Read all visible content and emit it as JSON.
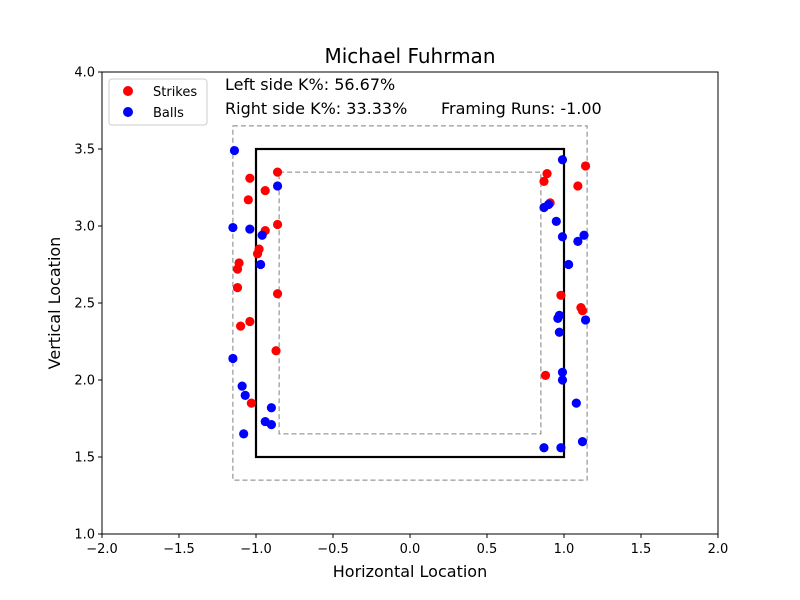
{
  "chart_data": {
    "type": "scatter",
    "title": "Michael Fuhrman",
    "xlabel": "Horizontal Location",
    "ylabel": "Vertical Location",
    "xlim": [
      -2.0,
      2.0
    ],
    "ylim": [
      1.0,
      4.0
    ],
    "xticks": [
      "−2.0",
      "−1.5",
      "−1.0",
      "−0.5",
      "0.0",
      "0.5",
      "1.0",
      "1.5",
      "2.0"
    ],
    "xtick_values": [
      -2.0,
      -1.5,
      -1.0,
      -0.5,
      0.0,
      0.5,
      1.0,
      1.5,
      2.0
    ],
    "yticks": [
      "1.0",
      "1.5",
      "2.0",
      "2.5",
      "3.0",
      "3.5",
      "4.0"
    ],
    "ytick_values": [
      1.0,
      1.5,
      2.0,
      2.5,
      3.0,
      3.5,
      4.0
    ],
    "grid": false,
    "legend_position": "top-left",
    "annotations": {
      "left_k": "Left side K%: 56.67%",
      "right_k": "Right side K%: 33.33%",
      "framing": "Framing Runs: -1.00"
    },
    "zones": {
      "strike_zone": {
        "x": [
          -1.0,
          1.0
        ],
        "y": [
          1.5,
          3.5
        ],
        "color": "#000000"
      },
      "outer_zone": {
        "x": [
          -1.15,
          1.15
        ],
        "y": [
          1.35,
          3.65
        ],
        "color": "#808080"
      },
      "inner_zone": {
        "x": [
          -0.85,
          0.85
        ],
        "y": [
          1.65,
          3.35
        ],
        "color": "#808080"
      }
    },
    "series": [
      {
        "name": "Strikes",
        "color": "#ff0000",
        "points": [
          [
            -1.04,
            3.31
          ],
          [
            -0.86,
            3.35
          ],
          [
            -1.05,
            3.17
          ],
          [
            -0.94,
            3.23
          ],
          [
            -0.86,
            3.01
          ],
          [
            -0.94,
            2.97
          ],
          [
            -0.98,
            2.85
          ],
          [
            -0.99,
            2.82
          ],
          [
            -1.11,
            2.76
          ],
          [
            -1.12,
            2.72
          ],
          [
            -1.12,
            2.6
          ],
          [
            -0.86,
            2.56
          ],
          [
            -1.04,
            2.38
          ],
          [
            -1.1,
            2.35
          ],
          [
            -0.87,
            2.19
          ],
          [
            -1.03,
            1.85
          ],
          [
            1.14,
            3.39
          ],
          [
            0.89,
            3.34
          ],
          [
            0.87,
            3.29
          ],
          [
            1.09,
            3.26
          ],
          [
            0.91,
            3.15
          ],
          [
            0.98,
            2.55
          ],
          [
            1.11,
            2.47
          ],
          [
            1.12,
            2.45
          ],
          [
            0.88,
            2.03
          ]
        ]
      },
      {
        "name": "Balls",
        "color": "#0000ff",
        "points": [
          [
            -1.14,
            3.49
          ],
          [
            -0.86,
            3.26
          ],
          [
            -1.15,
            2.99
          ],
          [
            -1.04,
            2.98
          ],
          [
            -0.96,
            2.94
          ],
          [
            -0.97,
            2.75
          ],
          [
            -1.15,
            2.14
          ],
          [
            -1.09,
            1.96
          ],
          [
            -1.07,
            1.9
          ],
          [
            -0.9,
            1.82
          ],
          [
            -0.94,
            1.73
          ],
          [
            -0.9,
            1.71
          ],
          [
            -1.08,
            1.65
          ],
          [
            0.99,
            3.43
          ],
          [
            0.87,
            3.12
          ],
          [
            0.9,
            3.14
          ],
          [
            0.95,
            3.03
          ],
          [
            0.99,
            2.93
          ],
          [
            1.13,
            2.94
          ],
          [
            1.09,
            2.9
          ],
          [
            1.03,
            2.75
          ],
          [
            0.97,
            2.42
          ],
          [
            0.96,
            2.4
          ],
          [
            1.14,
            2.39
          ],
          [
            0.97,
            2.31
          ],
          [
            0.99,
            2.05
          ],
          [
            0.99,
            2.0
          ],
          [
            1.08,
            1.85
          ],
          [
            1.12,
            1.6
          ],
          [
            0.87,
            1.56
          ],
          [
            0.98,
            1.56
          ]
        ]
      }
    ]
  }
}
